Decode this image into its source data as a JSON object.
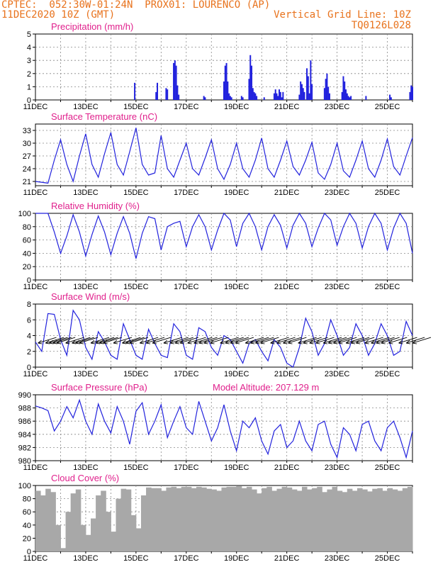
{
  "header": {
    "line1": "CPTEC:  052:30W-01:24N  PROX01: LOURENCO (AP)",
    "line2_left": "11DEC2020 10Z (GMT)",
    "line2_right": "Vertical Grid Line: 10Z",
    "line3_right": "TQ0126L028"
  },
  "colors": {
    "title": "#e0208c",
    "header": "#e8721c",
    "line": "#2222dd",
    "bar": "#2222dd",
    "cloud": "#a8a8a8",
    "grid": "#888888"
  },
  "chart_data": [
    {
      "type": "bar",
      "title": "Precipitation (mm/h)",
      "ylim": [
        0,
        5
      ],
      "yticks": [
        0,
        1,
        2,
        3,
        4,
        5
      ],
      "xticks": [
        "11DEC",
        "13DEC",
        "15DEC",
        "17DEC",
        "19DEC",
        "21DEC",
        "23DEC",
        "25DEC"
      ],
      "x_unit": "day offset from 11DEC 10Z",
      "series": [
        {
          "x": [
            3.95,
            4.8,
            4.85,
            5.2,
            5.25,
            5.5,
            5.55,
            5.6,
            5.65,
            5.7,
            6.7,
            6.75,
            7.5,
            7.55,
            7.6,
            7.65,
            7.7,
            7.75,
            7.8,
            8.2,
            8.25,
            8.5,
            8.55,
            8.6,
            8.65,
            8.7,
            8.75,
            8.8,
            9.1,
            9.5,
            9.55,
            9.6,
            9.65,
            9.7,
            9.75,
            9.8,
            9.85,
            10.5,
            10.55,
            10.6,
            10.65,
            10.7,
            10.8,
            10.85,
            10.9,
            10.95,
            11.0,
            11.5,
            11.55,
            11.6,
            11.65,
            11.7,
            12.2,
            12.25,
            12.3,
            12.35,
            12.4,
            12.45,
            12.5,
            12.55,
            13.15,
            14.1,
            14.15,
            14.9,
            14.95,
            15.0
          ],
          "values": [
            1.3,
            0.6,
            1.3,
            0.9,
            0.8,
            2.8,
            3.0,
            2.6,
            1.1,
            0.4,
            0.3,
            0.2,
            1.4,
            2.6,
            2.8,
            1.4,
            0.5,
            0.3,
            0.2,
            0.3,
            0.2,
            1.6,
            3.4,
            2.6,
            0.9,
            0.6,
            0.5,
            0.3,
            0.2,
            0.5,
            0.8,
            0.5,
            0.3,
            0.8,
            0.6,
            0.2,
            0.6,
            0.4,
            1.4,
            1.2,
            0.9,
            0.6,
            2.4,
            1.8,
            0.5,
            3.0,
            1.2,
            0.9,
            1.6,
            2.0,
            1.0,
            0.5,
            0.6,
            1.8,
            1.4,
            0.8,
            0.5,
            0.3,
            0.2,
            0.3,
            0.3,
            0.4,
            0.2,
            0.6,
            1.1,
            1.0
          ]
        }
      ]
    },
    {
      "type": "line",
      "title": "Surface Temperature (nC)",
      "ylim": [
        20,
        34.5
      ],
      "yticks": [
        21,
        24,
        27,
        30,
        33
      ],
      "xticks": [
        "11DEC",
        "13DEC",
        "15DEC",
        "17DEC",
        "19DEC",
        "21DEC",
        "23DEC",
        "25DEC"
      ],
      "series": [
        {
          "x": [
            0,
            0.5,
            0.75,
            1,
            1.25,
            1.5,
            1.75,
            2,
            2.25,
            2.5,
            2.75,
            3,
            3.25,
            3.5,
            3.75,
            4,
            4.25,
            4.5,
            4.75,
            5,
            5.25,
            5.5,
            5.75,
            6,
            6.25,
            6.5,
            6.75,
            7,
            7.25,
            7.5,
            7.75,
            8,
            8.25,
            8.5,
            8.75,
            9,
            9.25,
            9.5,
            9.75,
            10,
            10.25,
            10.5,
            10.75,
            11,
            11.25,
            11.5,
            11.75,
            12,
            12.25,
            12.5,
            12.75,
            13,
            13.25,
            13.5,
            13.75,
            14,
            14.25,
            14.5,
            14.75,
            15
          ],
          "values": [
            21,
            20.6,
            26,
            30.8,
            25,
            21,
            27,
            32.2,
            25,
            22,
            27.5,
            32.5,
            25,
            22.5,
            28,
            33.6,
            25,
            22.5,
            23,
            31.8,
            24,
            22,
            26,
            30,
            24,
            22.5,
            26.5,
            30.8,
            24,
            21.5,
            25,
            30,
            24,
            22,
            26,
            31.2,
            24,
            22,
            26,
            30.5,
            24.5,
            22.5,
            26,
            30.2,
            23,
            21.5,
            25,
            30,
            23.5,
            22,
            26,
            30.5,
            24,
            22,
            26,
            31,
            24.5,
            22.5,
            27,
            31.3
          ]
        }
      ]
    },
    {
      "type": "line",
      "title": "Relative Humidity (%)",
      "ylim": [
        0,
        100
      ],
      "yticks": [
        0,
        20,
        40,
        60,
        80,
        100
      ],
      "xticks": [
        "11DEC",
        "13DEC",
        "15DEC",
        "17DEC",
        "19DEC",
        "21DEC",
        "23DEC",
        "25DEC"
      ],
      "series": [
        {
          "x": [
            0,
            0.5,
            0.75,
            1,
            1.25,
            1.5,
            1.75,
            2,
            2.25,
            2.5,
            2.75,
            3,
            3.25,
            3.5,
            3.75,
            4,
            4.25,
            4.5,
            4.75,
            5,
            5.25,
            5.5,
            5.75,
            6,
            6.25,
            6.5,
            6.75,
            7,
            7.25,
            7.5,
            7.75,
            8,
            8.25,
            8.5,
            8.75,
            9,
            9.25,
            9.5,
            9.75,
            10,
            10.25,
            10.5,
            10.75,
            11,
            11.25,
            11.5,
            11.75,
            12,
            12.25,
            12.5,
            12.75,
            13,
            13.25,
            13.5,
            13.75,
            14,
            14.25,
            14.5,
            14.75,
            15
          ],
          "values": [
            100,
            100,
            72,
            40,
            66,
            98,
            72,
            36,
            68,
            96,
            72,
            38,
            70,
            95,
            70,
            32,
            70,
            95,
            92,
            45,
            80,
            85,
            88,
            50,
            80,
            98,
            80,
            45,
            75,
            100,
            90,
            50,
            85,
            100,
            80,
            45,
            80,
            98,
            82,
            48,
            82,
            100,
            85,
            50,
            78,
            100,
            90,
            52,
            80,
            100,
            85,
            48,
            80,
            100,
            85,
            45,
            78,
            100,
            85,
            40
          ]
        }
      ]
    },
    {
      "type": "line",
      "title": "Surface Wind (m/s)",
      "ylim": [
        0,
        8
      ],
      "yticks": [
        0,
        2,
        4,
        6,
        8
      ],
      "xticks": [
        "11DEC",
        "13DEC",
        "15DEC",
        "17DEC",
        "19DEC",
        "21DEC",
        "23DEC",
        "25DEC"
      ],
      "series": [
        {
          "x": [
            0,
            0.25,
            0.5,
            0.75,
            1,
            1.25,
            1.5,
            1.75,
            2,
            2.25,
            2.5,
            2.75,
            3,
            3.25,
            3.5,
            3.75,
            4,
            4.25,
            4.5,
            4.75,
            5,
            5.25,
            5.5,
            5.75,
            6,
            6.25,
            6.5,
            6.75,
            7,
            7.25,
            7.5,
            7.75,
            8,
            8.25,
            8.5,
            8.75,
            9,
            9.25,
            9.5,
            9.75,
            10,
            10.25,
            10.5,
            10.75,
            11,
            11.25,
            11.5,
            11.75,
            12,
            12.25,
            12.5,
            12.75,
            13,
            13.25,
            13.5,
            13.75,
            14,
            14.25,
            14.5,
            14.75,
            15
          ],
          "values": [
            3.2,
            2,
            6.8,
            6.7,
            3.5,
            1.5,
            7.2,
            6,
            2.5,
            1,
            4.5,
            3.2,
            1.5,
            1,
            5.5,
            3.5,
            1.5,
            1,
            4.8,
            3,
            1.5,
            1.2,
            5.5,
            4.5,
            1.5,
            1,
            5,
            4.5,
            2.5,
            1.5,
            4,
            3.5,
            2,
            0.5,
            3,
            3.5,
            2,
            0.8,
            3.5,
            2.5,
            0.5,
            0,
            2.5,
            6.2,
            4.5,
            1.5,
            3,
            6,
            4,
            1.5,
            2.5,
            5.5,
            4,
            1.5,
            3,
            5.5,
            4,
            1.5,
            2,
            5.8,
            4
          ]
        }
      ],
      "arrows_x": [
        0.1,
        0.4,
        0.55,
        0.7,
        0.85,
        1.2,
        1.45,
        1.6,
        1.75,
        2.2,
        2.4,
        2.55,
        2.7,
        3.1,
        3.45,
        3.6,
        3.75,
        4.15,
        4.4,
        4.65,
        5.1,
        5.35,
        5.55,
        5.75,
        6.05,
        6.3,
        6.5,
        6.7,
        6.95,
        7.35,
        7.55,
        7.75,
        7.95,
        8.35,
        8.55,
        8.75,
        8.95,
        9.35,
        9.6,
        9.85,
        10.05,
        10.45,
        10.65,
        10.9,
        11.15,
        11.45,
        11.65,
        11.85,
        12.05,
        12.35,
        12.55,
        12.75,
        13.1,
        13.35,
        13.55,
        13.75,
        14.05,
        14.45,
        14.75,
        15
      ]
    },
    {
      "type": "line",
      "title": "Surface Pressure (hPa)",
      "annotation": "Model Altitude: 207.129 m",
      "ylim": [
        980,
        990
      ],
      "yticks": [
        980,
        982,
        984,
        986,
        988,
        990
      ],
      "xticks": [
        "11DEC",
        "13DEC",
        "15DEC",
        "17DEC",
        "19DEC",
        "21DEC",
        "23DEC",
        "25DEC"
      ],
      "series": [
        {
          "x": [
            0,
            0.25,
            0.5,
            0.75,
            1,
            1.25,
            1.5,
            1.75,
            2,
            2.25,
            2.5,
            2.75,
            3,
            3.25,
            3.5,
            3.75,
            4,
            4.25,
            4.5,
            4.75,
            5,
            5.25,
            5.5,
            5.75,
            6,
            6.25,
            6.5,
            6.75,
            7,
            7.25,
            7.5,
            7.75,
            8,
            8.25,
            8.5,
            8.75,
            9,
            9.25,
            9.5,
            9.75,
            10,
            10.25,
            10.5,
            10.75,
            11,
            11.25,
            11.5,
            11.75,
            12,
            12.25,
            12.5,
            12.75,
            13,
            13.25,
            13.5,
            13.75,
            14,
            14.25,
            14.5,
            14.75,
            15
          ],
          "values": [
            988.3,
            988,
            987.6,
            984.5,
            986,
            988.2,
            986.5,
            989.2,
            986,
            984,
            988.6,
            986,
            984.2,
            988.2,
            986,
            982.5,
            987.5,
            988.8,
            984,
            986,
            988.5,
            983.5,
            986,
            988.2,
            985,
            984,
            989,
            986,
            983,
            985,
            988.5,
            984.5,
            981.5,
            986,
            985,
            986.5,
            983,
            981,
            984.5,
            985.5,
            982,
            983,
            986,
            983,
            981.5,
            985.5,
            986,
            982.5,
            980.5,
            985,
            984,
            981.5,
            985.5,
            986,
            983,
            981.5,
            985,
            986,
            983.5,
            980.5,
            984.5
          ]
        }
      ]
    },
    {
      "type": "bar",
      "title": "Cloud Cover (%)",
      "ylim": [
        0,
        100
      ],
      "yticks": [
        0,
        20,
        40,
        60,
        80,
        100
      ],
      "xticks": [
        "11DEC",
        "13DEC",
        "15DEC",
        "17DEC",
        "19DEC",
        "21DEC",
        "23DEC",
        "25DEC"
      ],
      "series": [
        {
          "x": [
            0,
            0.2,
            0.4,
            0.6,
            0.8,
            1,
            1.2,
            1.4,
            1.6,
            1.8,
            2,
            2.2,
            2.4,
            2.6,
            2.8,
            3,
            3.2,
            3.4,
            3.6,
            3.8,
            4,
            4.2,
            4.4,
            4.6,
            4.8,
            5,
            5.2,
            5.4,
            5.6,
            5.8,
            6,
            6.2,
            6.4,
            6.6,
            6.8,
            7,
            7.2,
            7.4,
            7.6,
            7.8,
            8,
            8.2,
            8.4,
            8.6,
            8.8,
            9,
            9.2,
            9.4,
            9.6,
            9.8,
            10,
            10.2,
            10.4,
            10.6,
            10.8,
            11,
            11.2,
            11.4,
            11.6,
            11.8,
            12,
            12.2,
            12.4,
            12.6,
            12.8,
            13,
            13.2,
            13.4,
            13.6,
            13.8,
            14,
            14.2,
            14.4,
            14.6,
            14.8
          ],
          "values": [
            92,
            85,
            95,
            90,
            40,
            5,
            60,
            88,
            94,
            40,
            25,
            50,
            85,
            92,
            60,
            30,
            80,
            95,
            94,
            55,
            35,
            85,
            97,
            96,
            96,
            92,
            97,
            98,
            96,
            98,
            98,
            96,
            98,
            97,
            95,
            94,
            92,
            97,
            98,
            98,
            99,
            96,
            98,
            94,
            88,
            96,
            98,
            92,
            95,
            98,
            97,
            94,
            92,
            98,
            94,
            96,
            98,
            90,
            94,
            98,
            92,
            90,
            95,
            92,
            96,
            94,
            91,
            95,
            96,
            92,
            96,
            94,
            92,
            96,
            98
          ]
        }
      ]
    }
  ]
}
